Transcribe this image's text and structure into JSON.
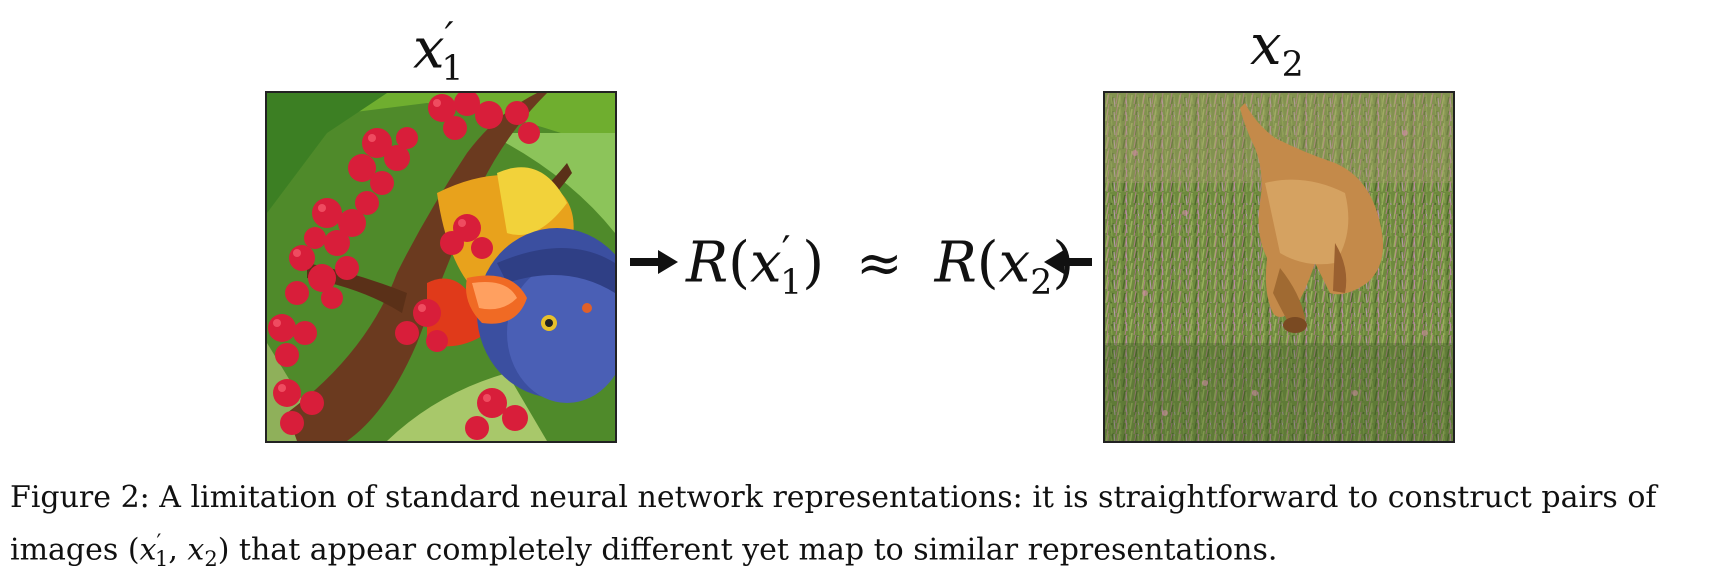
{
  "figure": {
    "left_label": {
      "var": "x",
      "sub": "1",
      "prime": "′"
    },
    "right_label": {
      "var": "x",
      "sub": "2"
    },
    "equation": {
      "lhs_fn": "R",
      "lhs_var": "x",
      "lhs_sub": "1",
      "lhs_prime": "′",
      "approx": "≈",
      "rhs_fn": "R",
      "rhs_var": "x",
      "rhs_sub": "2"
    },
    "caption": {
      "prefix": "Figure 2: A limitation of standard neural network representations: it is straightforward to construct pairs of images (",
      "var1": "x",
      "var1_prime": "′",
      "var1_sub": "1",
      "sep": ", ",
      "var2": "x",
      "var2_sub": "2",
      "suffix": ") that appear completely different yet map to similar representations."
    }
  }
}
